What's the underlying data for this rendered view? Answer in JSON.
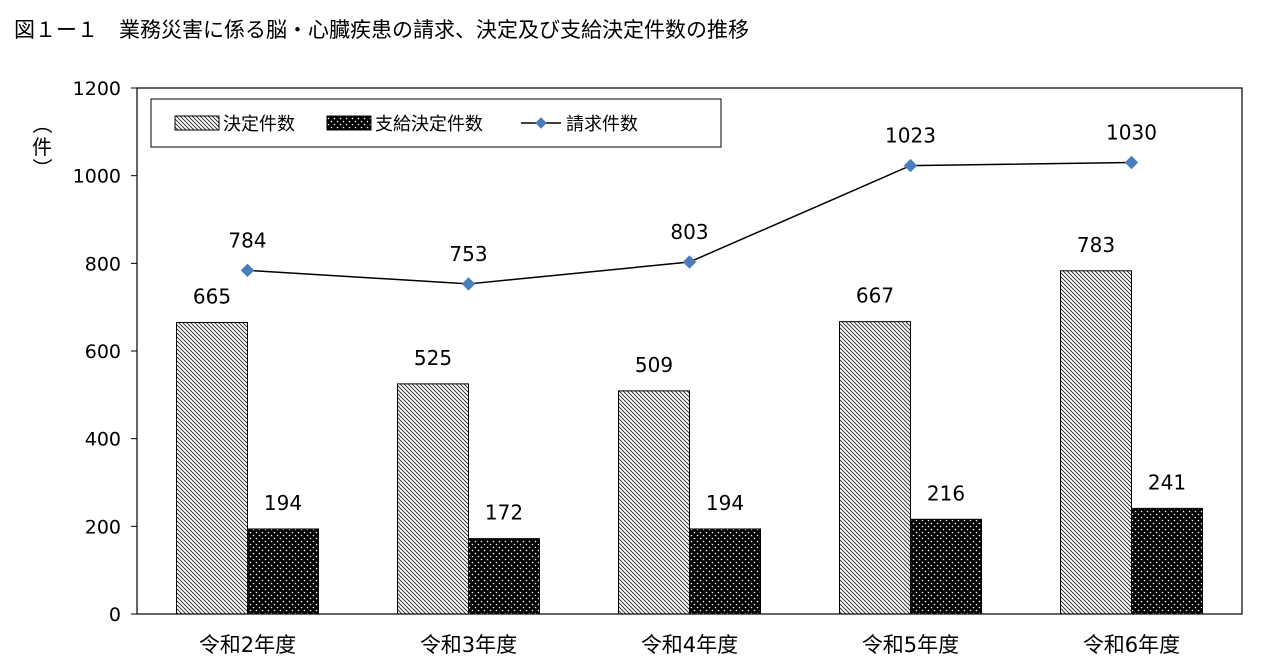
{
  "title": "図１ー１　業務災害に係る脳・心臓疾患の請求、決定及び支給決定件数の推移",
  "chart_data": {
    "type": "bar",
    "categories": [
      "令和2年度",
      "令和3年度",
      "令和4年度",
      "令和5年度",
      "令和6年度"
    ],
    "ylabel": "（件）",
    "ylim": [
      0,
      1200
    ],
    "yticks": [
      0,
      200,
      400,
      600,
      800,
      1000,
      1200
    ],
    "grid": false,
    "legend_position": "top-left",
    "series": [
      {
        "name": "決定件数",
        "kind": "bar",
        "fill": "diagonal-hatch",
        "values": [
          665,
          525,
          509,
          667,
          783
        ]
      },
      {
        "name": "支給決定件数",
        "kind": "bar",
        "fill": "black-dotted",
        "values": [
          194,
          172,
          194,
          216,
          241
        ]
      },
      {
        "name": "請求件数",
        "kind": "line",
        "marker": "diamond",
        "color": "#4a7ebb",
        "values": [
          784,
          753,
          803,
          1023,
          1030
        ]
      }
    ]
  }
}
